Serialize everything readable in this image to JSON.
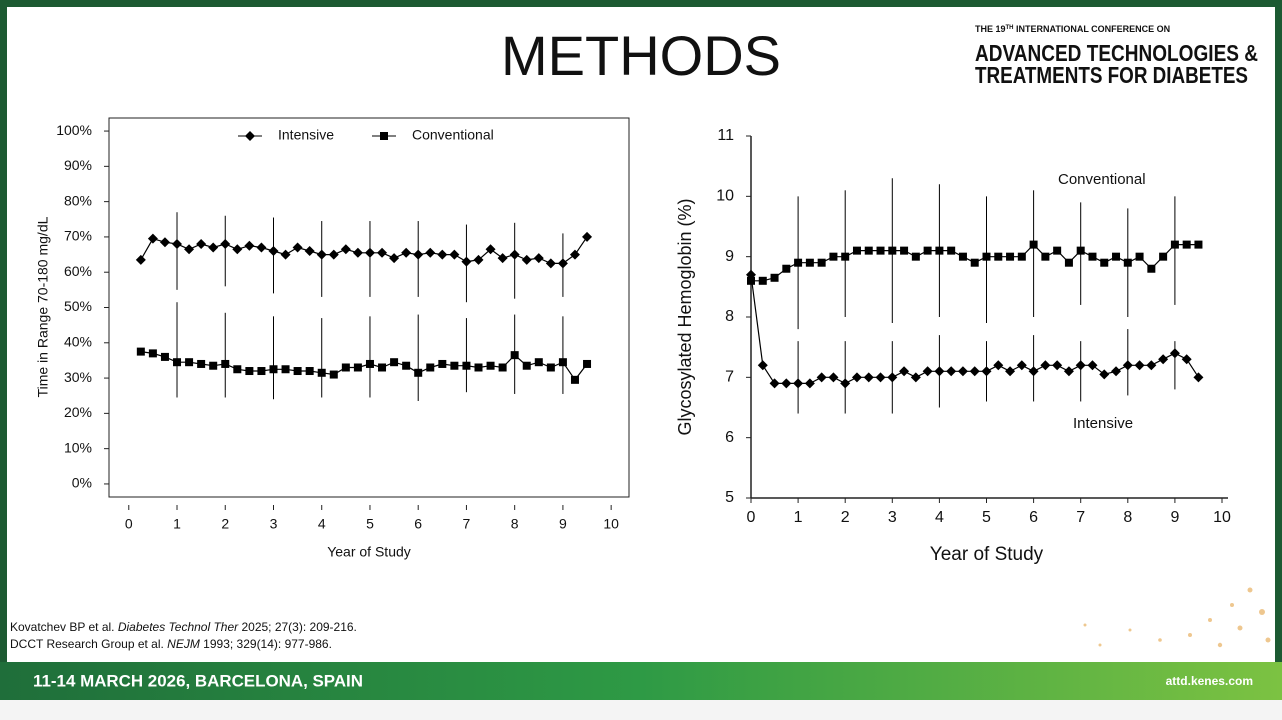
{
  "slide": {
    "title": "METHODS",
    "header": {
      "line1_pre": "THE 19",
      "line1_sup": "TH",
      "line1_post": " INTERNATIONAL CONFERENCE ON",
      "line2": "ADVANCED TECHNOLOGIES &",
      "line3": "TREATMENTS FOR DIABETES"
    },
    "references": [
      {
        "pre": "Kovatchev BP et al. ",
        "journal": "Diabetes Technol Ther",
        "post": " 2025; 27(3): 209-216."
      },
      {
        "pre": "DCCT Research Group et al. ",
        "journal": "NEJM",
        "post": " 1993; 329(14): 977-986."
      }
    ],
    "footer": {
      "event": "11-14 MARCH 2026, BARCELONA, SPAIN",
      "site": "attd.kenes.com"
    }
  },
  "chart_data": [
    {
      "type": "line",
      "x_label": "Year of Study",
      "y_label": "Time in Range 70-180 mg/dL",
      "legend": "top",
      "frame": true,
      "x": [
        0.25,
        0.5,
        0.75,
        1,
        1.25,
        1.5,
        1.75,
        2,
        2.25,
        2.5,
        2.75,
        3,
        3.25,
        3.5,
        3.75,
        4,
        4.25,
        4.5,
        4.75,
        5,
        5.25,
        5.5,
        5.75,
        6,
        6.25,
        6.5,
        6.75,
        7,
        7.25,
        7.5,
        7.75,
        8,
        8.25,
        8.5,
        8.75,
        9,
        9.25,
        9.5
      ],
      "series": [
        {
          "name": "Intensive",
          "color": "#000000",
          "marker": "diamond",
          "values": [
            63.5,
            69.5,
            68.5,
            68,
            66.5,
            68,
            67,
            68,
            66.5,
            67.5,
            67,
            66,
            65,
            67,
            66,
            65,
            65,
            66.5,
            65.5,
            65.5,
            65.5,
            64,
            65.5,
            65,
            65.5,
            65,
            65,
            63,
            63.5,
            66.5,
            64,
            65,
            63.5,
            64,
            62.5,
            62.5,
            65,
            70
          ],
          "error_bars": [
            {
              "x": 1,
              "low": 55,
              "high": 77
            },
            {
              "x": 2,
              "low": 56,
              "high": 76
            },
            {
              "x": 3,
              "low": 54,
              "high": 75.5
            },
            {
              "x": 4,
              "low": 53,
              "high": 74.5
            },
            {
              "x": 5,
              "low": 53,
              "high": 74.5
            },
            {
              "x": 6,
              "low": 53,
              "high": 74.5
            },
            {
              "x": 7,
              "low": 51.5,
              "high": 73.5
            },
            {
              "x": 8,
              "low": 52.5,
              "high": 74
            },
            {
              "x": 9,
              "low": 53,
              "high": 71
            }
          ]
        },
        {
          "name": "Conventional",
          "color": "#000000",
          "marker": "square",
          "values": [
            37.5,
            37,
            36,
            34.5,
            34.5,
            34,
            33.5,
            34,
            32.5,
            32,
            32,
            32.5,
            32.5,
            32,
            32,
            31.5,
            31,
            33,
            33,
            34,
            33,
            34.5,
            33.5,
            31.5,
            33,
            34,
            33.5,
            33.5,
            33,
            33.5,
            33,
            36.5,
            33.5,
            34.5,
            33,
            34.5,
            29.5,
            34
          ],
          "error_bars": [
            {
              "x": 1,
              "low": 24.5,
              "high": 51.5
            },
            {
              "x": 2,
              "low": 24.5,
              "high": 48.5
            },
            {
              "x": 3,
              "low": 24,
              "high": 47.5
            },
            {
              "x": 4,
              "low": 24.5,
              "high": 47
            },
            {
              "x": 5,
              "low": 24.5,
              "high": 47.5
            },
            {
              "x": 6,
              "low": 23.5,
              "high": 48
            },
            {
              "x": 7,
              "low": 26,
              "high": 47
            },
            {
              "x": 8,
              "low": 25.5,
              "high": 48
            },
            {
              "x": 9,
              "low": 25.5,
              "high": 47.5
            }
          ]
        }
      ],
      "xlim": [
        -0.41,
        10.37
      ],
      "xticks": [
        0,
        1,
        2,
        3,
        4,
        5,
        6,
        7,
        8,
        9,
        10
      ],
      "ylim": [
        -3.7,
        103.7
      ],
      "yticks": [
        {
          "value": 0,
          "label": "0%"
        },
        {
          "value": 10,
          "label": "10%"
        },
        {
          "value": 20,
          "label": "20%"
        },
        {
          "value": 30,
          "label": "30%"
        },
        {
          "value": 40,
          "label": "40%"
        },
        {
          "value": 50,
          "label": "50%"
        },
        {
          "value": 60,
          "label": "60%"
        },
        {
          "value": 70,
          "label": "70%"
        },
        {
          "value": 80,
          "label": "80%"
        },
        {
          "value": 90,
          "label": "90%"
        },
        {
          "value": 100,
          "label": "100%"
        }
      ]
    },
    {
      "type": "line",
      "x_label": "Year of Study",
      "y_label": "Glycosylated Hemoglobin (%)",
      "legend": "inline",
      "frame": false,
      "x": [
        0,
        0.25,
        0.5,
        0.75,
        1,
        1.25,
        1.5,
        1.75,
        2,
        2.25,
        2.5,
        2.75,
        3,
        3.25,
        3.5,
        3.75,
        4,
        4.25,
        4.5,
        4.75,
        5,
        5.25,
        5.5,
        5.75,
        6,
        6.25,
        6.5,
        6.75,
        7,
        7.25,
        7.5,
        7.75,
        8,
        8.25,
        8.5,
        8.75,
        9,
        9.25,
        9.5
      ],
      "series": [
        {
          "name": "Conventional",
          "color": "#000000",
          "marker": "square",
          "values": [
            8.6,
            8.6,
            8.65,
            8.8,
            8.9,
            8.9,
            8.9,
            9,
            9,
            9.1,
            9.1,
            9.1,
            9.1,
            9.1,
            9,
            9.1,
            9.1,
            9.1,
            9,
            8.9,
            9,
            9,
            9,
            9,
            9.2,
            9,
            9.1,
            8.9,
            9.1,
            9,
            8.9,
            9,
            8.9,
            9,
            8.8,
            9,
            9.2,
            9.2,
            9.2
          ],
          "error_bars": [
            {
              "x": 1,
              "low": 7.8,
              "high": 10
            },
            {
              "x": 2,
              "low": 8,
              "high": 10.1
            },
            {
              "x": 3,
              "low": 7.9,
              "high": 10.3
            },
            {
              "x": 4,
              "low": 8,
              "high": 10.2
            },
            {
              "x": 5,
              "low": 7.9,
              "high": 10
            },
            {
              "x": 6,
              "low": 8,
              "high": 10.1
            },
            {
              "x": 7,
              "low": 8.2,
              "high": 9.9
            },
            {
              "x": 8,
              "low": 8,
              "high": 9.8
            },
            {
              "x": 9,
              "low": 8.2,
              "high": 10
            }
          ]
        },
        {
          "name": "Intensive",
          "color": "#000000",
          "marker": "diamond",
          "values": [
            8.7,
            7.2,
            6.9,
            6.9,
            6.9,
            6.9,
            7,
            7,
            6.9,
            7,
            7,
            7,
            7,
            7.1,
            7,
            7.1,
            7.1,
            7.1,
            7.1,
            7.1,
            7.1,
            7.2,
            7.1,
            7.2,
            7.1,
            7.2,
            7.2,
            7.1,
            7.2,
            7.2,
            7.05,
            7.1,
            7.2,
            7.2,
            7.2,
            7.3,
            7.4,
            7.3,
            7
          ],
          "error_bars": [
            {
              "x": 1,
              "low": 6.4,
              "high": 7.6
            },
            {
              "x": 2,
              "low": 6.4,
              "high": 7.6
            },
            {
              "x": 3,
              "low": 6.4,
              "high": 7.6
            },
            {
              "x": 4,
              "low": 6.5,
              "high": 7.7
            },
            {
              "x": 5,
              "low": 6.6,
              "high": 7.6
            },
            {
              "x": 6,
              "low": 6.6,
              "high": 7.7
            },
            {
              "x": 7,
              "low": 6.6,
              "high": 7.6
            },
            {
              "x": 8,
              "low": 6.7,
              "high": 7.8
            },
            {
              "x": 9,
              "low": 6.8,
              "high": 7.6
            }
          ]
        }
      ],
      "xlim": [
        0,
        10
      ],
      "xticks": [
        0,
        1,
        2,
        3,
        4,
        5,
        6,
        7,
        8,
        9,
        10
      ],
      "ylim": [
        5,
        11
      ],
      "yticks": [
        5,
        6,
        7,
        8,
        9,
        10,
        11
      ]
    }
  ]
}
